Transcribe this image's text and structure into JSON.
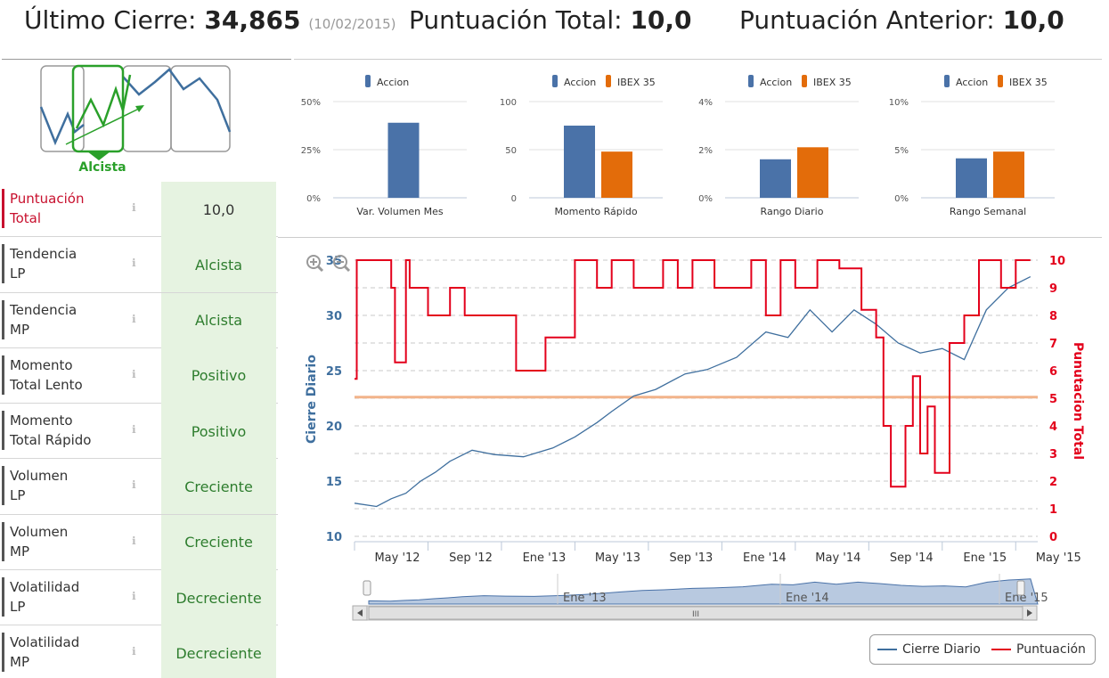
{
  "header": {
    "ultimo_label": "Último Cierre:",
    "ultimo_value": "34,865",
    "ultimo_date": "(10/02/2015)",
    "total_label": "Puntuación Total:",
    "total_value": "10,0",
    "anterior_label": "Puntuación Anterior:",
    "anterior_value": "10,0"
  },
  "trend": {
    "label": "Alcista",
    "accent": "#2aa02a"
  },
  "metrics": [
    {
      "label1": "Puntuación",
      "label2": "Total",
      "value": "10,0"
    },
    {
      "label1": "Tendencia",
      "label2": "LP",
      "value": "Alcista"
    },
    {
      "label1": "Tendencia",
      "label2": "MP",
      "value": "Alcista"
    },
    {
      "label1": "Momento",
      "label2": "Total Lento",
      "value": "Positivo"
    },
    {
      "label1": "Momento",
      "label2": "Total Rápido",
      "value": "Positivo"
    },
    {
      "label1": "Volumen",
      "label2": "LP",
      "value": "Creciente"
    },
    {
      "label1": "Volumen",
      "label2": "MP",
      "value": "Creciente"
    },
    {
      "label1": "Volatilidad",
      "label2": "LP",
      "value": "Decreciente"
    },
    {
      "label1": "Volatilidad",
      "label2": "MP",
      "value": "Decreciente"
    }
  ],
  "colors": {
    "accion": "#4a72a8",
    "ibex": "#e36c0a",
    "punt": "#e3001b",
    "cierre": "#3f6f9e"
  },
  "chart_data": [
    {
      "type": "bar",
      "title": "Var. Volumen Mes",
      "series": [
        {
          "name": "Accion",
          "values": [
            39
          ]
        }
      ],
      "ylim": [
        0,
        50
      ],
      "ticks": [
        "0%",
        "25%",
        "50%"
      ]
    },
    {
      "type": "bar",
      "title": "Momento Rápido",
      "series": [
        {
          "name": "Accion",
          "values": [
            75
          ]
        },
        {
          "name": "IBEX 35",
          "values": [
            48
          ]
        }
      ],
      "ylim": [
        0,
        100
      ],
      "ticks": [
        "0",
        "50",
        "100"
      ]
    },
    {
      "type": "bar",
      "title": "Rango Diario",
      "series": [
        {
          "name": "Accion",
          "values": [
            1.6
          ]
        },
        {
          "name": "IBEX 35",
          "values": [
            2.1
          ]
        }
      ],
      "ylim": [
        0,
        4
      ],
      "ticks": [
        "0%",
        "2%",
        "4%"
      ]
    },
    {
      "type": "bar",
      "title": "Rango Semanal",
      "series": [
        {
          "name": "Accion",
          "values": [
            4.1
          ]
        },
        {
          "name": "IBEX 35",
          "values": [
            4.8
          ]
        }
      ],
      "ylim": [
        0,
        10
      ],
      "ticks": [
        "0%",
        "5%",
        "10%"
      ]
    },
    {
      "type": "line",
      "x_labels": [
        "May '12",
        "Sep '12",
        "Ene '13",
        "May '13",
        "Sep '13",
        "Ene '14",
        "May '14",
        "Sep '14",
        "Ene '15",
        "May '15"
      ],
      "y_left": {
        "label": "Cierre Diario",
        "range": [
          10,
          35
        ],
        "ticks": [
          "10",
          "15",
          "20",
          "25",
          "30",
          "35"
        ]
      },
      "y_right": {
        "label": "Punutacion Total",
        "range": [
          0,
          10
        ],
        "ticks": [
          "0",
          "1",
          "2",
          "3",
          "4",
          "5",
          "6",
          "7",
          "8",
          "9",
          "10"
        ]
      },
      "reference_line_left": 22.6,
      "series": [
        {
          "name": "Cierre Diario",
          "axis": "left",
          "x": [
            0,
            0.3,
            0.5,
            0.7,
            0.9,
            1.1,
            1.3,
            1.6,
            1.9,
            2.3,
            2.7,
            3.0,
            3.3,
            3.5,
            3.8,
            4.1,
            4.5,
            4.8,
            5.2,
            5.6,
            5.9,
            6.2,
            6.5,
            6.8,
            7.1,
            7.4,
            7.7,
            8.0,
            8.3,
            8.6,
            8.9,
            9.2
          ],
          "values": [
            13,
            12.7,
            13.4,
            13.9,
            15.0,
            15.8,
            16.8,
            17.8,
            17.4,
            17.2,
            18.0,
            19.0,
            20.3,
            21.3,
            22.7,
            23.3,
            24.7,
            25.1,
            26.2,
            28.5,
            28.0,
            30.5,
            28.5,
            30.5,
            29.2,
            27.5,
            26.6,
            27.0,
            26.0,
            30.5,
            32.5,
            33.5
          ]
        },
        {
          "name": "Puntuación",
          "axis": "right",
          "x": [
            0,
            0.03,
            0.35,
            0.5,
            0.55,
            0.7,
            0.75,
            0.85,
            1.0,
            1.1,
            1.3,
            1.5,
            2.0,
            2.2,
            2.6,
            3.0,
            3.3,
            3.5,
            3.8,
            4.2,
            4.4,
            4.6,
            4.9,
            5.4,
            5.6,
            5.8,
            6.0,
            6.3,
            6.6,
            6.9,
            7.1,
            7.2,
            7.3,
            7.5,
            7.6,
            7.7,
            7.8,
            7.9,
            8.1,
            8.3,
            8.5,
            8.8,
            9.0,
            9.2
          ],
          "values": [
            5.7,
            10,
            10,
            9,
            6.3,
            10,
            9,
            9,
            8,
            8,
            9,
            8,
            8,
            6,
            7.2,
            10,
            9,
            10,
            9,
            10,
            9,
            10,
            9,
            10,
            8,
            10,
            9,
            10,
            9.7,
            8.2,
            7.2,
            4,
            1.8,
            4,
            5.8,
            3,
            4.7,
            2.3,
            7,
            8,
            10,
            9,
            10,
            10
          ]
        }
      ]
    }
  ],
  "navigator": {
    "labels": [
      "Ene '13",
      "Ene '14",
      "Ene '15"
    ],
    "grip": "III"
  },
  "legend": {
    "items": [
      "Cierre Diario",
      "Puntuación"
    ]
  },
  "bar_legend": {
    "accion": "Accion",
    "ibex": "IBEX 35"
  }
}
